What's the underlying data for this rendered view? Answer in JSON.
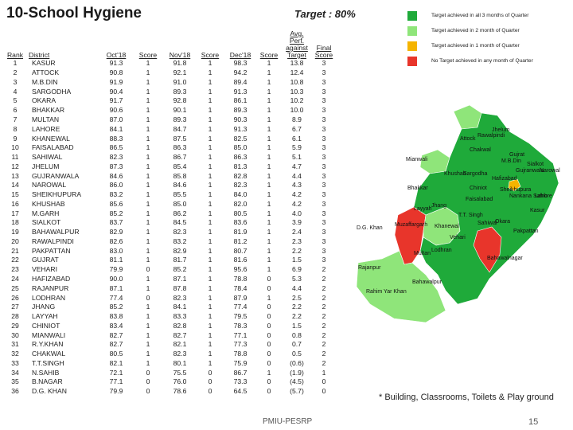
{
  "title": "10-School Hygiene",
  "target": "Target : 80%",
  "headers": {
    "rank": "Rank",
    "district": "District",
    "oct": "Oct'18",
    "score1": "Score",
    "nov": "Nov'18",
    "score2": "Score",
    "dec": "Dec'18",
    "score3": "Score",
    "avg_line1": "Avg. Perf.",
    "avg_line2": "against Target",
    "final_line1": "Final",
    "final_line2": "Score"
  },
  "rows": [
    {
      "rank": "1",
      "district": "KASUR",
      "oct": "91.3",
      "s1": "1",
      "nov": "91.8",
      "s2": "1",
      "dec": "98.3",
      "s3": "1",
      "avg": "13.8",
      "final": "3"
    },
    {
      "rank": "2",
      "district": "ATTOCK",
      "oct": "90.8",
      "s1": "1",
      "nov": "92.1",
      "s2": "1",
      "dec": "94.2",
      "s3": "1",
      "avg": "12.4",
      "final": "3"
    },
    {
      "rank": "3",
      "district": "M.B.DIN",
      "oct": "91.9",
      "s1": "1",
      "nov": "91.0",
      "s2": "1",
      "dec": "89.4",
      "s3": "1",
      "avg": "10.8",
      "final": "3"
    },
    {
      "rank": "4",
      "district": "SARGODHA",
      "oct": "90.4",
      "s1": "1",
      "nov": "89.3",
      "s2": "1",
      "dec": "91.3",
      "s3": "1",
      "avg": "10.3",
      "final": "3"
    },
    {
      "rank": "5",
      "district": "OKARA",
      "oct": "91.7",
      "s1": "1",
      "nov": "92.8",
      "s2": "1",
      "dec": "86.1",
      "s3": "1",
      "avg": "10.2",
      "final": "3"
    },
    {
      "rank": "6",
      "district": "BHAKKAR",
      "oct": "90.6",
      "s1": "1",
      "nov": "90.1",
      "s2": "1",
      "dec": "89.3",
      "s3": "1",
      "avg": "10.0",
      "final": "3"
    },
    {
      "rank": "7",
      "district": "MULTAN",
      "oct": "87.0",
      "s1": "1",
      "nov": "89.3",
      "s2": "1",
      "dec": "90.3",
      "s3": "1",
      "avg": "8.9",
      "final": "3"
    },
    {
      "rank": "8",
      "district": "LAHORE",
      "oct": "84.1",
      "s1": "1",
      "nov": "84.7",
      "s2": "1",
      "dec": "91.3",
      "s3": "1",
      "avg": "6.7",
      "final": "3"
    },
    {
      "rank": "9",
      "district": "KHANEWAL",
      "oct": "88.3",
      "s1": "1",
      "nov": "87.5",
      "s2": "1",
      "dec": "82.5",
      "s3": "1",
      "avg": "6.1",
      "final": "3"
    },
    {
      "rank": "10",
      "district": "FAISALABAD",
      "oct": "86.5",
      "s1": "1",
      "nov": "86.3",
      "s2": "1",
      "dec": "85.0",
      "s3": "1",
      "avg": "5.9",
      "final": "3"
    },
    {
      "rank": "11",
      "district": "SAHIWAL",
      "oct": "82.3",
      "s1": "1",
      "nov": "86.7",
      "s2": "1",
      "dec": "86.3",
      "s3": "1",
      "avg": "5.1",
      "final": "3"
    },
    {
      "rank": "12",
      "district": "JHELUM",
      "oct": "87.3",
      "s1": "1",
      "nov": "85.4",
      "s2": "1",
      "dec": "81.3",
      "s3": "1",
      "avg": "4.7",
      "final": "3"
    },
    {
      "rank": "13",
      "district": "GUJRANWALA",
      "oct": "84.6",
      "s1": "1",
      "nov": "85.8",
      "s2": "1",
      "dec": "82.8",
      "s3": "1",
      "avg": "4.4",
      "final": "3"
    },
    {
      "rank": "14",
      "district": "NAROWAL",
      "oct": "86.0",
      "s1": "1",
      "nov": "84.6",
      "s2": "1",
      "dec": "82.3",
      "s3": "1",
      "avg": "4.3",
      "final": "3"
    },
    {
      "rank": "15",
      "district": "SHEIKHUPURA",
      "oct": "83.2",
      "s1": "1",
      "nov": "85.5",
      "s2": "1",
      "dec": "84.0",
      "s3": "1",
      "avg": "4.2",
      "final": "3"
    },
    {
      "rank": "16",
      "district": "KHUSHAB",
      "oct": "85.6",
      "s1": "1",
      "nov": "85.0",
      "s2": "1",
      "dec": "82.0",
      "s3": "1",
      "avg": "4.2",
      "final": "3"
    },
    {
      "rank": "17",
      "district": "M.GARH",
      "oct": "85.2",
      "s1": "1",
      "nov": "86.2",
      "s2": "1",
      "dec": "80.5",
      "s3": "1",
      "avg": "4.0",
      "final": "3"
    },
    {
      "rank": "18",
      "district": "SIALKOT",
      "oct": "83.7",
      "s1": "1",
      "nov": "84.5",
      "s2": "1",
      "dec": "83.6",
      "s3": "1",
      "avg": "3.9",
      "final": "3"
    },
    {
      "rank": "19",
      "district": "BAHAWALPUR",
      "oct": "82.9",
      "s1": "1",
      "nov": "82.3",
      "s2": "1",
      "dec": "81.9",
      "s3": "1",
      "avg": "2.4",
      "final": "3"
    },
    {
      "rank": "20",
      "district": "RAWALPINDI",
      "oct": "82.6",
      "s1": "1",
      "nov": "83.2",
      "s2": "1",
      "dec": "81.2",
      "s3": "1",
      "avg": "2.3",
      "final": "3"
    },
    {
      "rank": "21",
      "district": "PAKPATTAN",
      "oct": "83.0",
      "s1": "1",
      "nov": "82.9",
      "s2": "1",
      "dec": "80.7",
      "s3": "1",
      "avg": "2.2",
      "final": "3"
    },
    {
      "rank": "22",
      "district": "GUJRAT",
      "oct": "81.1",
      "s1": "1",
      "nov": "81.7",
      "s2": "1",
      "dec": "81.6",
      "s3": "1",
      "avg": "1.5",
      "final": "3"
    },
    {
      "rank": "23",
      "district": "VEHARI",
      "oct": "79.9",
      "s1": "0",
      "nov": "85.2",
      "s2": "1",
      "dec": "95.6",
      "s3": "1",
      "avg": "6.9",
      "final": "2"
    },
    {
      "rank": "24",
      "district": "HAFIZABAD",
      "oct": "90.0",
      "s1": "1",
      "nov": "87.1",
      "s2": "1",
      "dec": "78.8",
      "s3": "0",
      "avg": "5.3",
      "final": "2"
    },
    {
      "rank": "25",
      "district": "RAJANPUR",
      "oct": "87.1",
      "s1": "1",
      "nov": "87.8",
      "s2": "1",
      "dec": "78.4",
      "s3": "0",
      "avg": "4.4",
      "final": "2"
    },
    {
      "rank": "26",
      "district": "LODHRAN",
      "oct": "77.4",
      "s1": "0",
      "nov": "82.3",
      "s2": "1",
      "dec": "87.9",
      "s3": "1",
      "avg": "2.5",
      "final": "2"
    },
    {
      "rank": "27",
      "district": "JHANG",
      "oct": "85.2",
      "s1": "1",
      "nov": "84.1",
      "s2": "1",
      "dec": "77.4",
      "s3": "0",
      "avg": "2.2",
      "final": "2"
    },
    {
      "rank": "28",
      "district": "LAYYAH",
      "oct": "83.8",
      "s1": "1",
      "nov": "83.3",
      "s2": "1",
      "dec": "79.5",
      "s3": "0",
      "avg": "2.2",
      "final": "2"
    },
    {
      "rank": "29",
      "district": "CHINIOT",
      "oct": "83.4",
      "s1": "1",
      "nov": "82.8",
      "s2": "1",
      "dec": "78.3",
      "s3": "0",
      "avg": "1.5",
      "final": "2"
    },
    {
      "rank": "30",
      "district": "MIANWALI",
      "oct": "82.7",
      "s1": "1",
      "nov": "82.7",
      "s2": "1",
      "dec": "77.1",
      "s3": "0",
      "avg": "0.8",
      "final": "2"
    },
    {
      "rank": "31",
      "district": "R.Y.KHAN",
      "oct": "82.7",
      "s1": "1",
      "nov": "82.1",
      "s2": "1",
      "dec": "77.3",
      "s3": "0",
      "avg": "0.7",
      "final": "2"
    },
    {
      "rank": "32",
      "district": "CHAKWAL",
      "oct": "80.5",
      "s1": "1",
      "nov": "82.3",
      "s2": "1",
      "dec": "78.8",
      "s3": "0",
      "avg": "0.5",
      "final": "2"
    },
    {
      "rank": "33",
      "district": "T.T.SINGH",
      "oct": "82.1",
      "s1": "1",
      "nov": "80.1",
      "s2": "1",
      "dec": "75.9",
      "s3": "0",
      "avg": "(0.6)",
      "final": "2"
    },
    {
      "rank": "34",
      "district": "N.SAHIB",
      "oct": "72.1",
      "s1": "0",
      "nov": "75.5",
      "s2": "0",
      "dec": "86.7",
      "s3": "1",
      "avg": "(1.9)",
      "final": "1"
    },
    {
      "rank": "35",
      "district": "B.NAGAR",
      "oct": "77.1",
      "s1": "0",
      "nov": "76.0",
      "s2": "0",
      "dec": "73.3",
      "s3": "0",
      "avg": "(4.5)",
      "final": "0"
    },
    {
      "rank": "36",
      "district": "D.G. KHAN",
      "oct": "79.9",
      "s1": "0",
      "nov": "78.6",
      "s2": "0",
      "dec": "64.5",
      "s3": "0",
      "avg": "(5.7)",
      "final": "0"
    }
  ],
  "legend": [
    {
      "label": "Target achieved in all 3 months of Quarter",
      "color": "#1faa3a"
    },
    {
      "label": "Target achieved in 2 month of Quarter",
      "color": "#8fe57a"
    },
    {
      "label": "Target achieved in 1 month of Quarter",
      "color": "#f5b400"
    },
    {
      "label": "No Target achieved in any month of Quarter",
      "color": "#e8352b"
    }
  ],
  "map": {
    "colors": {
      "all3": "#1faa3a",
      "two": "#8fe57a",
      "one": "#f5b400",
      "none": "#e8352b",
      "border": "#ffffff"
    },
    "labels": [
      "Attock",
      "Rawalpindi",
      "Jhelum",
      "Chakwal",
      "Gujrat",
      "Mianwali",
      "M.B.Din",
      "Sialkot",
      "Narowal",
      "Khushab",
      "Sargodha",
      "Hafizabad",
      "Gujranwala",
      "Sheikhupura",
      "Bhakkar",
      "Chiniot",
      "Nankana Sahib",
      "Lahore",
      "Jhang",
      "Faisalabad",
      "Kasur",
      "Layyah",
      "T.T. Singh",
      "Okara",
      "D.G. Khan",
      "Muzaffargarh",
      "Khanewal",
      "Sahiwal",
      "Pakpattan",
      "Vehari",
      "Multan",
      "Lodhran",
      "Bahawalnagar",
      "Rajanpur",
      "Bahawalpur",
      "Rahim Yar Khan"
    ]
  },
  "footnote": "* Building, Classrooms, Toilets & Play ground",
  "footer": "PMIU-PESRP",
  "page_number": "15"
}
